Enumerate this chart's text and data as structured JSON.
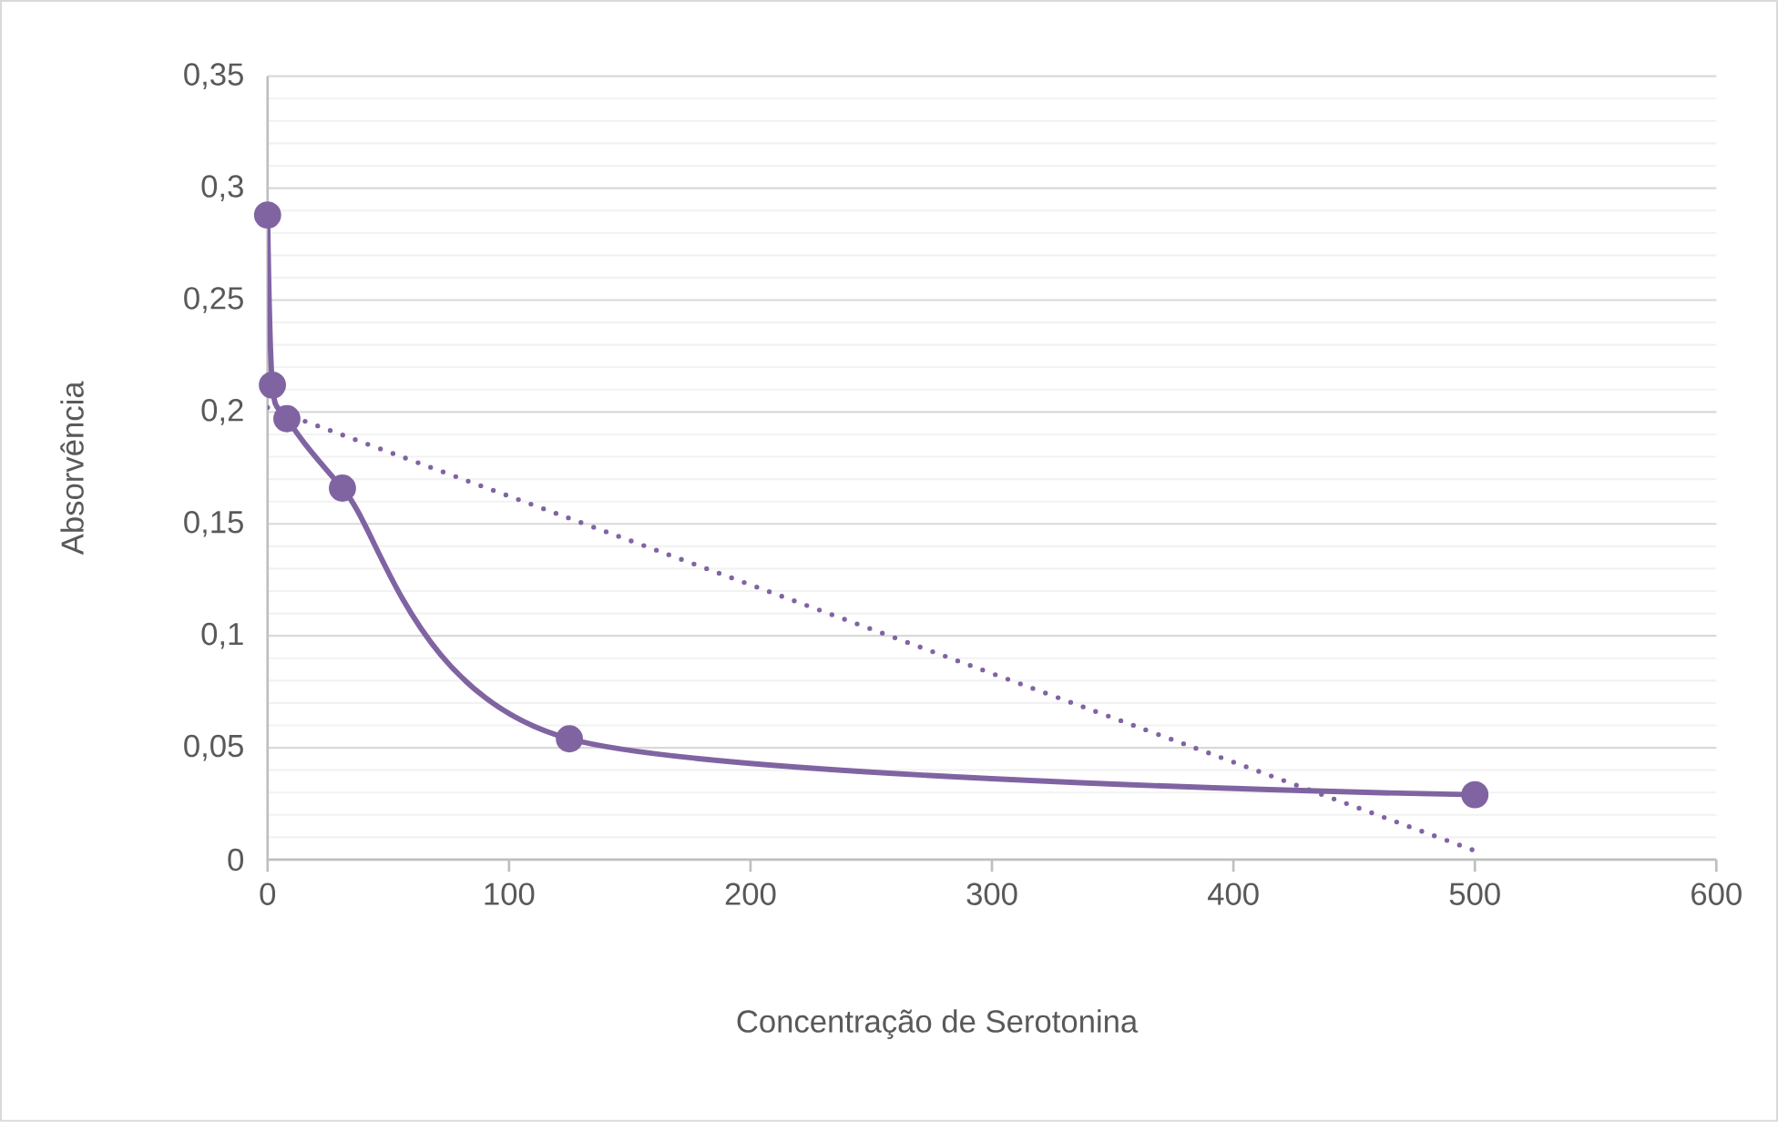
{
  "chart_data": {
    "type": "line",
    "xlabel": "Concentração de Serotonina",
    "ylabel": "Absorvência",
    "xlim": [
      0,
      600
    ],
    "xticks": [
      0,
      100,
      200,
      300,
      400,
      500,
      600
    ],
    "ylim": [
      0,
      0.35
    ],
    "yticks": [
      0,
      {
        "value": 0.05,
        "label": "0,05"
      },
      {
        "value": 0.1,
        "label": "0,1"
      },
      {
        "value": 0.15,
        "label": "0,15"
      },
      {
        "value": 0.2,
        "label": "0,2"
      },
      {
        "value": 0.25,
        "label": "0,25"
      },
      {
        "value": 0.3,
        "label": "0,3"
      },
      {
        "value": 0.35,
        "label": "0,35"
      }
    ],
    "grid": "y",
    "series": [
      {
        "type": "line",
        "color": "#8064a2",
        "marker": "circle",
        "line_style": "solid",
        "x": [
          0,
          2,
          8,
          31,
          125,
          500
        ],
        "values": [
          0.288,
          0.212,
          0.197,
          0.166,
          0.054,
          0.029
        ]
      },
      {
        "type": "line",
        "color": "#8064a2",
        "marker": "none",
        "line_style": "dotted",
        "x": [
          0,
          500
        ],
        "values": [
          0.202,
          0.004
        ]
      }
    ]
  }
}
